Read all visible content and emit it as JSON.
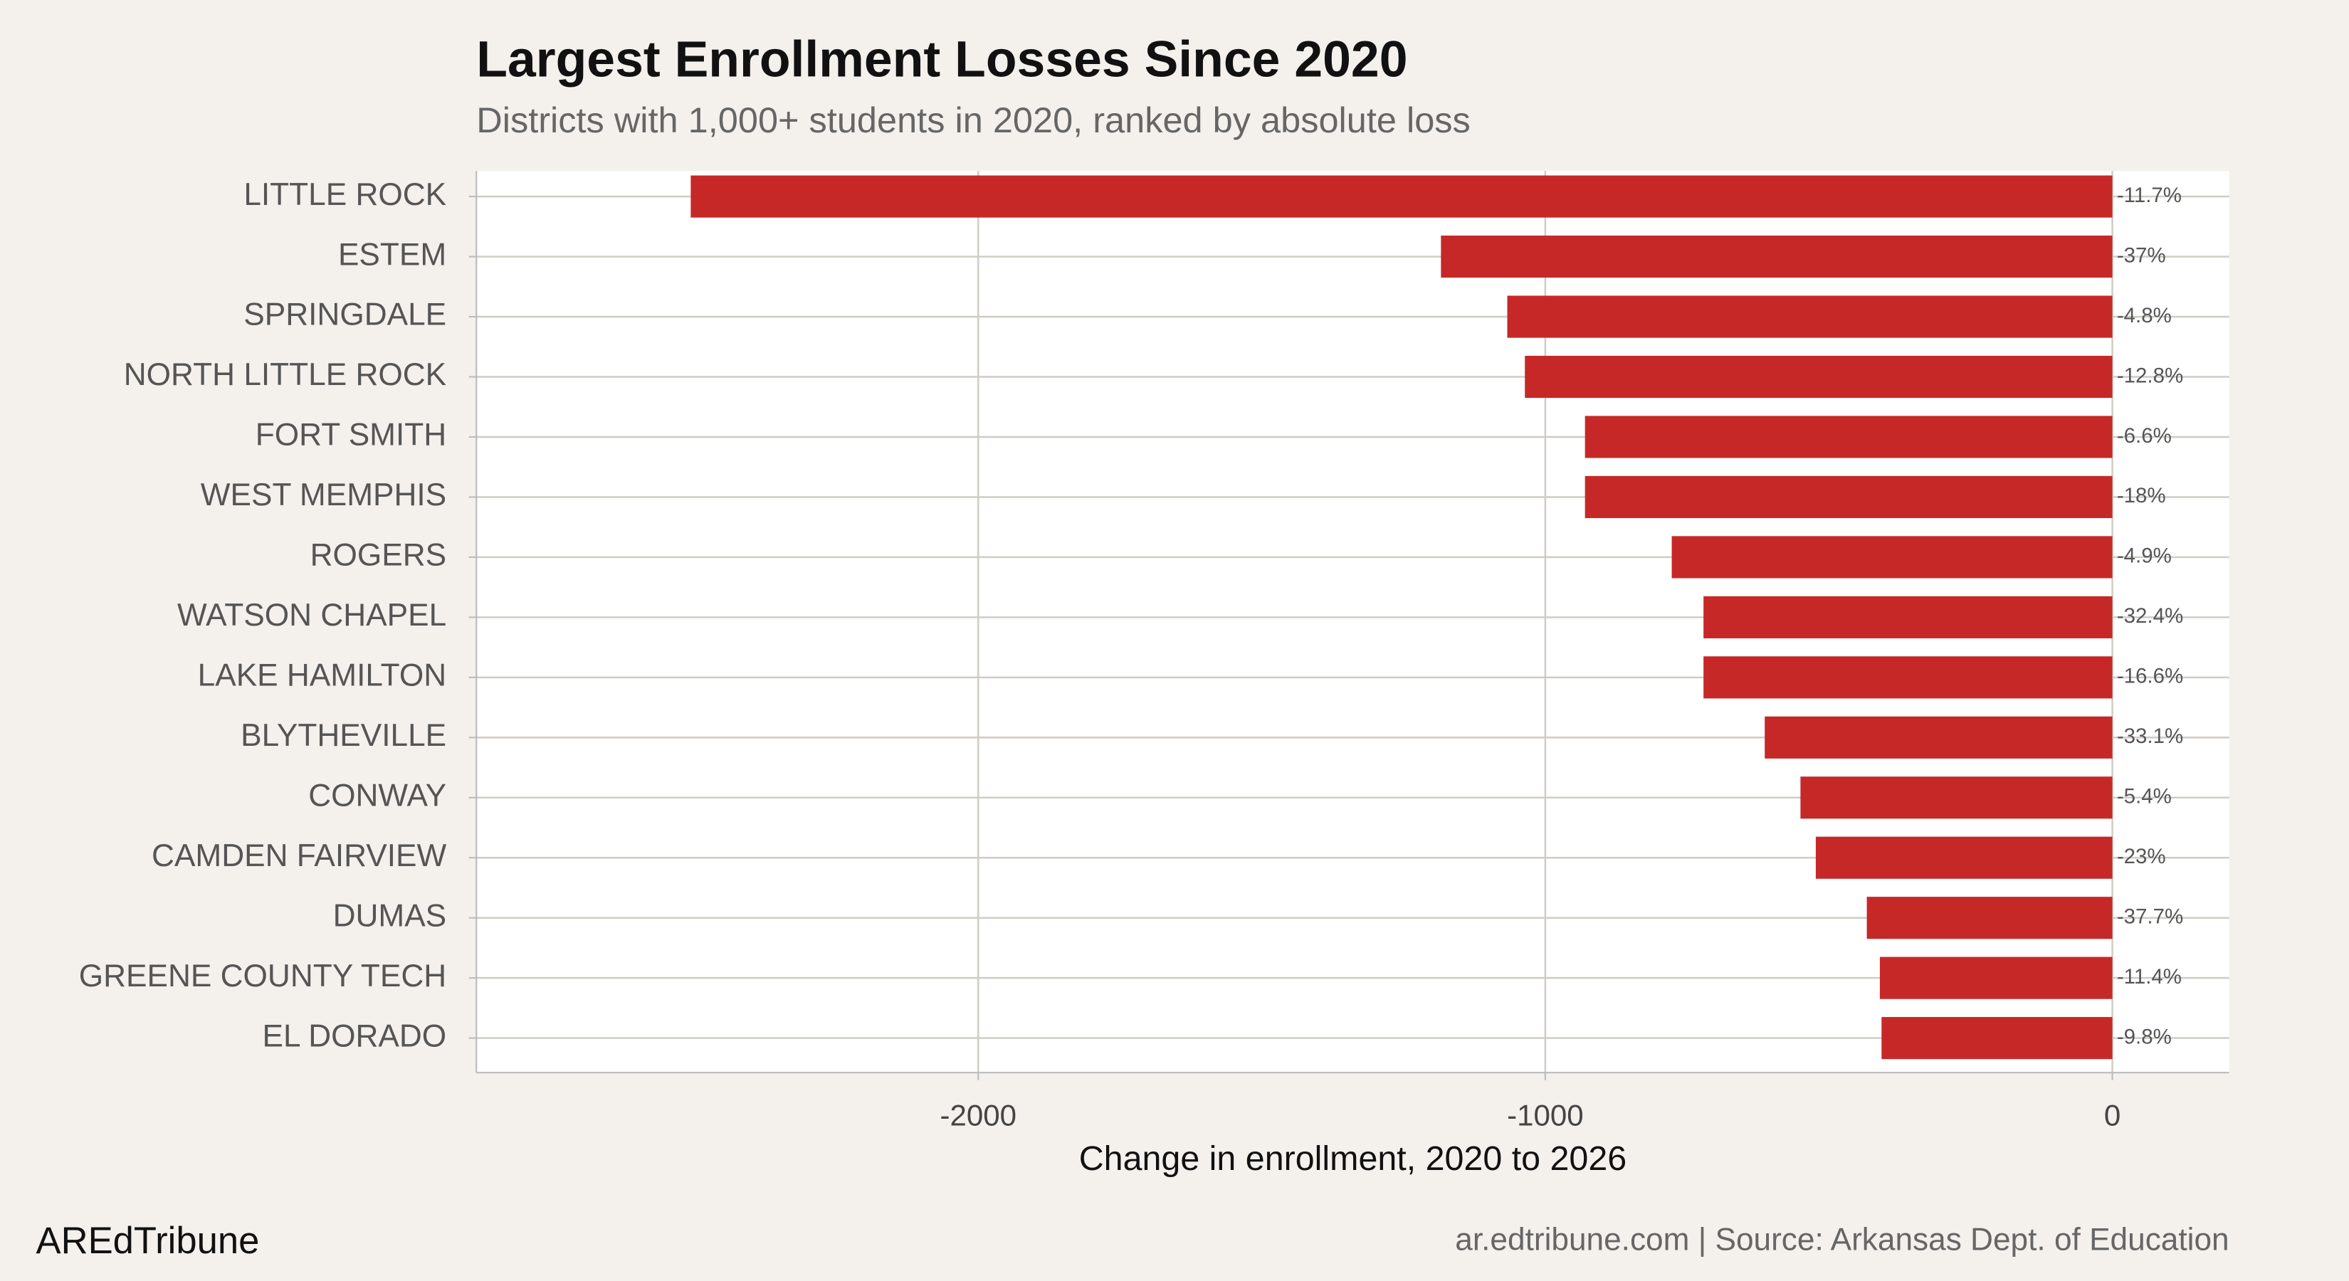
{
  "chart_data": {
    "type": "hbar",
    "title": "Largest Enrollment Losses Since 2020",
    "subtitle": "Districts with 1,000+ students in 2020, ranked by absolute loss",
    "x_label": "Change in enrollment, 2020 to 2026",
    "categories": [
      "LITTLE ROCK",
      "ESTEM",
      "SPRINGDALE",
      "NORTH LITTLE ROCK",
      "FORT SMITH",
      "WEST MEMPHIS",
      "ROGERS",
      "WATSON CHAPEL",
      "LAKE HAMILTON",
      "BLYTHEVILLE",
      "CONWAY",
      "CAMDEN FAIRVIEW",
      "DUMAS",
      "GREENE COUNTY TECH",
      "EL DORADO"
    ],
    "values": [
      -2507,
      -1184,
      -1067,
      -1036,
      -930,
      -930,
      -777,
      -721,
      -721,
      -613,
      -550,
      -523,
      -433,
      -410,
      -407
    ],
    "pct_labels": [
      "-11.7%",
      "-37%",
      "-4.8%",
      "-12.8%",
      "-6.6%",
      "-18%",
      "-4.9%",
      "-32.4%",
      "-16.6%",
      "-33.1%",
      "-5.4%",
      "-23%",
      "-37.7%",
      "-11.4%",
      "-9.8%"
    ],
    "color": "#c62828",
    "xlim": [
      -2885,
      206
    ],
    "xticks": [
      -2000,
      -1000,
      0
    ],
    "grid": true,
    "brand": "AREdTribune",
    "source": "ar.edtribune.com | Source: Arkansas Dept. of Education"
  }
}
